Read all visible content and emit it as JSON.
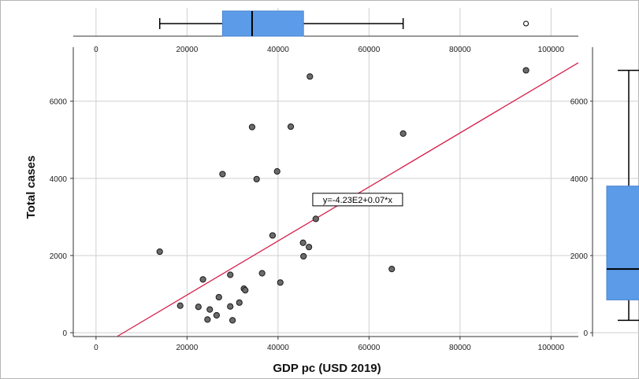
{
  "chart_data": {
    "type": "scatter",
    "xlabel": "GDP pc (USD 2019)",
    "ylabel": "Total cases",
    "xlim": [
      -5000,
      106000
    ],
    "ylim": [
      -100,
      7400
    ],
    "xticks": [
      0,
      20000,
      40000,
      60000,
      80000,
      100000
    ],
    "yticks": [
      0,
      2000,
      4000,
      6000
    ],
    "right_yticks": [
      0,
      2000,
      4000,
      6000
    ],
    "grid": true,
    "points": [
      {
        "x": 14000,
        "y": 2100
      },
      {
        "x": 18500,
        "y": 700
      },
      {
        "x": 22500,
        "y": 670
      },
      {
        "x": 23500,
        "y": 1380
      },
      {
        "x": 24500,
        "y": 340
      },
      {
        "x": 25000,
        "y": 600
      },
      {
        "x": 26500,
        "y": 450
      },
      {
        "x": 27000,
        "y": 920
      },
      {
        "x": 27800,
        "y": 4110
      },
      {
        "x": 29500,
        "y": 680
      },
      {
        "x": 29500,
        "y": 1500
      },
      {
        "x": 30000,
        "y": 320
      },
      {
        "x": 31500,
        "y": 780
      },
      {
        "x": 32500,
        "y": 1140
      },
      {
        "x": 32800,
        "y": 1100
      },
      {
        "x": 34300,
        "y": 5330
      },
      {
        "x": 35300,
        "y": 3980
      },
      {
        "x": 36500,
        "y": 1540
      },
      {
        "x": 38800,
        "y": 2520
      },
      {
        "x": 39800,
        "y": 4180
      },
      {
        "x": 40500,
        "y": 1300
      },
      {
        "x": 42800,
        "y": 5340
      },
      {
        "x": 45500,
        "y": 2330
      },
      {
        "x": 45600,
        "y": 1980
      },
      {
        "x": 46800,
        "y": 2220
      },
      {
        "x": 47000,
        "y": 6640
      },
      {
        "x": 48300,
        "y": 2950
      },
      {
        "x": 65000,
        "y": 1650
      },
      {
        "x": 67500,
        "y": 5160
      },
      {
        "x": 94500,
        "y": 6800
      }
    ],
    "fit_line": {
      "label": "y=-4.23E2+0.07*x",
      "intercept": -423,
      "slope": 0.07,
      "label_x": 57500,
      "label_y": 3450,
      "color": "#d6204c"
    },
    "x_boxplot": {
      "whisker_low": 14000,
      "q1": 27800,
      "median": 34300,
      "q3": 45600,
      "whisker_high": 67500,
      "outliers": [
        94500
      ],
      "fill": "#5b9be8"
    },
    "y_boxplot": {
      "whisker_low": 320,
      "q1": 850,
      "median": 1650,
      "q3": 3800,
      "whisker_high": 6800,
      "fill": "#5b9be8"
    },
    "point_color": "#6b6b6b",
    "line_color": "#d6204c",
    "grid_color": "#cfcfcf"
  }
}
